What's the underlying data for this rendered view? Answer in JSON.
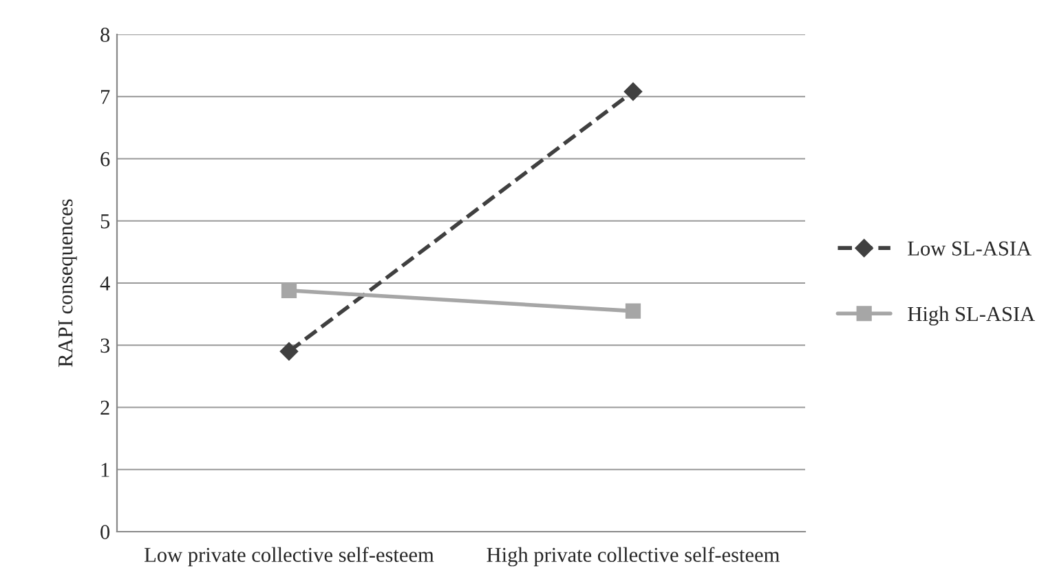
{
  "chart_data": {
    "type": "line",
    "ylabel": "RAPI consequences",
    "categories": [
      "Low private collective self-esteem",
      "High private collective self-esteem"
    ],
    "series": [
      {
        "name": "Low SL-ASIA",
        "color": "#404040",
        "values": [
          2.9,
          7.08
        ],
        "marker": "diamond",
        "line_style": "dashed"
      },
      {
        "name": "High SL-ASIA",
        "color": "#a6a6a6",
        "values": [
          3.88,
          3.55
        ],
        "marker": "square",
        "line_style": "solid"
      }
    ],
    "ylim": [
      0,
      8
    ],
    "yticks": [
      0,
      1,
      2,
      3,
      4,
      5,
      6,
      7,
      8
    ],
    "grid": "y",
    "legend": "right"
  }
}
